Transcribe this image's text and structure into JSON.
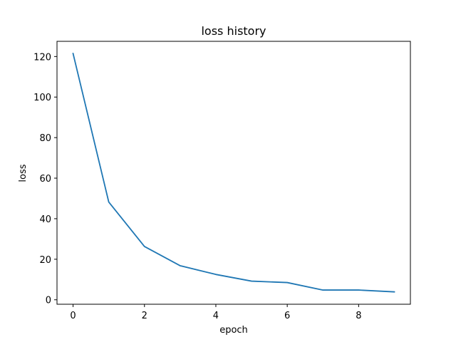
{
  "chart_data": {
    "type": "line",
    "title": "loss history",
    "xlabel": "epoch",
    "ylabel": "loss",
    "x": [
      0,
      1,
      2,
      3,
      4,
      5,
      6,
      7,
      8,
      9
    ],
    "series": [
      {
        "values": [
          121.5,
          48.2,
          26.3,
          16.8,
          12.5,
          9.2,
          8.5,
          4.8,
          4.8,
          3.9
        ]
      }
    ],
    "xlim": [
      -0.45,
      9.45
    ],
    "ylim": [
      -2.2,
      127.5
    ],
    "xticks": [
      0,
      2,
      4,
      6,
      8
    ],
    "yticks": [
      0,
      20,
      40,
      60,
      80,
      100,
      120
    ],
    "grid": false,
    "line_color": "#1f77b4"
  }
}
